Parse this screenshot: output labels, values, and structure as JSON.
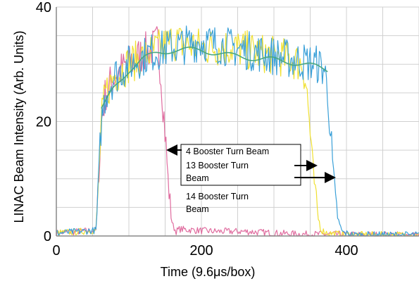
{
  "chart_data": {
    "type": "line",
    "xlabel": "Time (9.6μs/box)",
    "ylabel": "LINAC Beam Intensity (Arb. Units)",
    "xlim": [
      0,
      500
    ],
    "ylim": [
      0,
      40
    ],
    "x_ticks": [
      "0",
      "200",
      "400"
    ],
    "y_ticks": [
      "0",
      "20",
      "40"
    ],
    "grid": true,
    "series": [
      {
        "color": "#e06c9f",
        "x": [
          0,
          55,
          62,
          68,
          80,
          100,
          120,
          135,
          140,
          145,
          150,
          155,
          160,
          165,
          170,
          190,
          220,
          260,
          300,
          340,
          380,
          420,
          500
        ],
        "y": [
          0.5,
          1.0,
          20,
          25,
          28,
          30,
          32,
          33,
          34,
          27,
          18,
          8,
          2,
          0.8,
          1.2,
          1.0,
          0.8,
          0.8,
          0.5,
          0.3,
          0.3,
          0.2,
          0.2
        ]
      },
      {
        "color": "#f0e030",
        "x": [
          0,
          55,
          62,
          68,
          80,
          100,
          130,
          160,
          200,
          240,
          280,
          320,
          340,
          345,
          350,
          355,
          360,
          365,
          375,
          400,
          500
        ],
        "y": [
          0.5,
          1.0,
          20,
          25,
          28,
          30,
          32,
          34,
          33,
          33,
          32,
          31,
          30,
          26,
          18,
          10,
          4,
          1,
          0.5,
          0.2,
          0.2
        ]
      },
      {
        "color": "#3aa0d8",
        "x": [
          0,
          55,
          62,
          68,
          80,
          100,
          130,
          160,
          200,
          240,
          280,
          320,
          360,
          370,
          375,
          380,
          385,
          390,
          395,
          410,
          500
        ],
        "y": [
          0.5,
          1.0,
          20,
          25,
          28,
          30,
          32,
          33,
          34,
          33,
          32,
          31,
          30,
          29,
          24,
          14,
          6,
          2,
          0.6,
          0.2,
          0.2
        ]
      },
      {
        "color": "#4aa880",
        "x": [
          62,
          80,
          100,
          120,
          140,
          160,
          200,
          240,
          280,
          320,
          360,
          375
        ],
        "y": [
          22,
          26,
          29,
          31,
          32,
          32.5,
          32.5,
          31.5,
          31,
          30.5,
          29.5,
          29
        ]
      }
    ],
    "annotations": [
      "4 Booster Turn Beam",
      "13 Booster Turn Beam",
      "14 Booster Turn Beam"
    ]
  }
}
